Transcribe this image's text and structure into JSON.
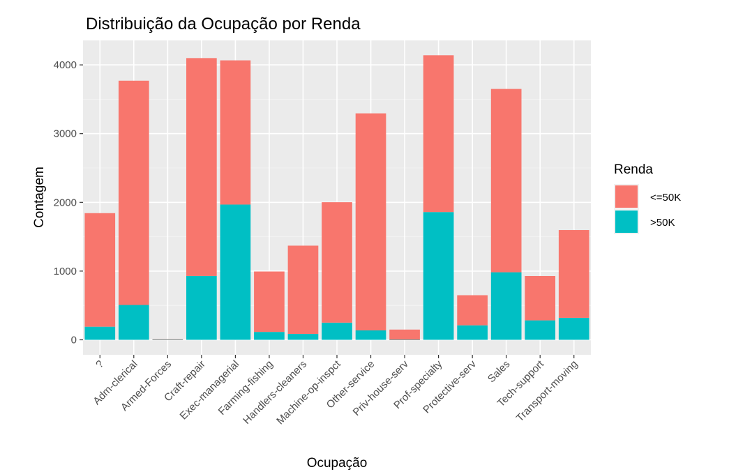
{
  "chart_data": {
    "type": "bar",
    "stacked": true,
    "title": "Distribuição da Ocupação por Renda",
    "xlabel": "Ocupação",
    "ylabel": "Contagem",
    "ylim": [
      -150,
      4300
    ],
    "yticks": [
      0,
      1000,
      2000,
      3000,
      4000
    ],
    "grid": true,
    "legend_position": "right",
    "legend_title": "Renda",
    "categories": [
      "?",
      "Adm-clerical",
      "Armed-Forces",
      "Craft-repair",
      "Exec-managerial",
      "Farming-fishing",
      "Handlers-cleaners",
      "Machine-op-inspct",
      "Other-service",
      "Priv-house-serv",
      "Prof-specialty",
      "Protective-serv",
      "Sales",
      "Tech-support",
      "Transport-moving"
    ],
    "series": [
      {
        "name": "<=50K",
        "color": "#F8766D",
        "values": [
          1652,
          3263,
          8,
          3170,
          2098,
          879,
          1284,
          1752,
          3158,
          148,
          2281,
          438,
          2667,
          645,
          1277
        ]
      },
      {
        "name": ">50K",
        "color": "#00BFC4",
        "values": [
          191,
          507,
          1,
          929,
          1968,
          115,
          86,
          250,
          137,
          1,
          1859,
          211,
          983,
          283,
          320
        ]
      }
    ]
  }
}
